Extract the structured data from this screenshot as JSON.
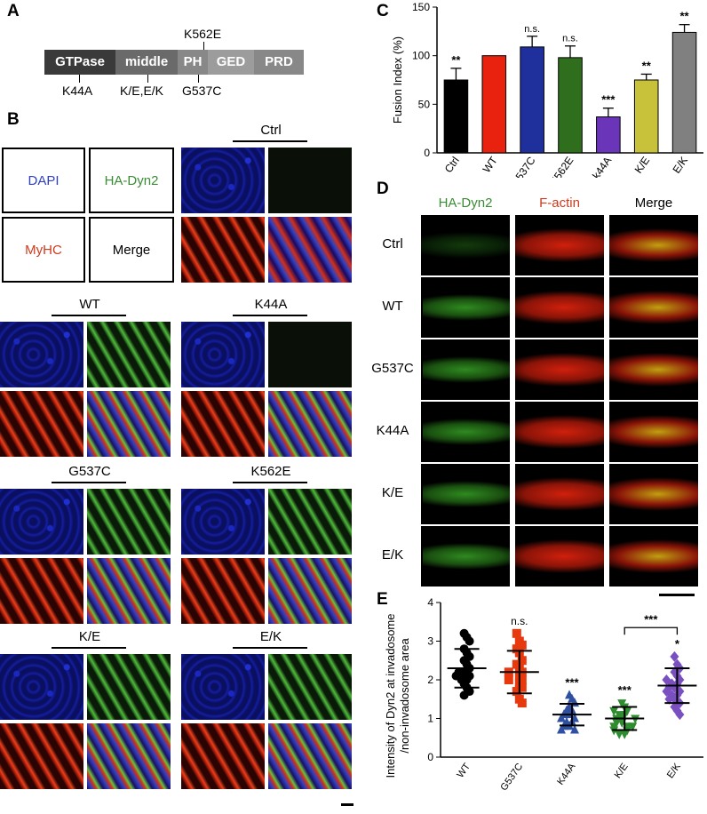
{
  "panels": {
    "a": "A",
    "b": "B",
    "c": "C",
    "d": "D",
    "e": "E"
  },
  "domains": [
    {
      "label": "GTPase",
      "color": "#3a3a3a"
    },
    {
      "label": "middle",
      "color": "#6a6a6a"
    },
    {
      "label": "PH",
      "color": "#888888"
    },
    {
      "label": "GED",
      "color": "#9c9c9c"
    },
    {
      "label": "PRD",
      "color": "#888888"
    }
  ],
  "mutations": {
    "k562e": "K562E",
    "k44a": "K44A",
    "ke_ek": "K/E,E/K",
    "g537c": "G537C"
  },
  "legend_boxes": {
    "dapi": "DAPI",
    "hadyn2": "HA-Dyn2",
    "myhc": "MyHC",
    "merge": "Merge"
  },
  "panel_b_groups": [
    "Ctrl",
    "WT",
    "K44A",
    "G537C",
    "K562E",
    "K/E",
    "E/K"
  ],
  "panel_d": {
    "columns": [
      "HA-Dyn2",
      "F-actin",
      "Merge"
    ],
    "rows": [
      "Ctrl",
      "WT",
      "G537C",
      "K44A",
      "K/E",
      "E/K"
    ]
  },
  "colors": {
    "dapi": "#1f2fd0",
    "ha": "#3aa535",
    "myhc": "#e23a1c",
    "black": "#000000"
  },
  "chart_data": [
    {
      "type": "bar",
      "ylabel": "Fusion Index (%)",
      "ylim": [
        0,
        150
      ],
      "yticks": [
        0,
        50,
        100,
        150
      ],
      "categories": [
        "Ctrl",
        "WT",
        "G537C",
        "K562E",
        "k44A",
        "K/E",
        "E/K"
      ],
      "values": [
        75,
        100,
        109,
        98,
        37,
        75,
        124
      ],
      "errors": [
        12,
        0,
        11,
        12,
        9,
        6,
        8
      ],
      "colors": [
        "#000000",
        "#e8220e",
        "#1f2f9c",
        "#2f6e1c",
        "#6a35b8",
        "#c8c23a",
        "#808080"
      ],
      "annotations": [
        "**",
        "",
        "n.s.",
        "n.s.",
        "***",
        "**",
        "**"
      ]
    },
    {
      "type": "scatter",
      "ylabel": "Intensity of Dyn2 at invadosome\n/non-invadosome  area",
      "ylim": [
        0,
        4
      ],
      "yticks": [
        0,
        1,
        2,
        3,
        4
      ],
      "categories": [
        "WT",
        "G537C",
        "K44A",
        "K/E",
        "E/K"
      ],
      "markers": [
        "circle",
        "square",
        "triangle",
        "triangle-down",
        "diamond"
      ],
      "colors": [
        "#000000",
        "#e8380e",
        "#2f4fa0",
        "#2f8c2f",
        "#7a4fc0"
      ],
      "means": [
        2.3,
        2.2,
        1.1,
        1.0,
        1.85
      ],
      "sd": [
        0.5,
        0.55,
        0.28,
        0.3,
        0.45
      ],
      "points": [
        [
          3.2,
          3.1,
          3.0,
          2.8,
          2.7,
          2.6,
          2.5,
          2.4,
          2.3,
          2.2,
          2.2,
          2.1,
          2.1,
          2.0,
          2.0,
          1.9,
          1.8,
          1.7,
          1.6
        ],
        [
          3.2,
          3.0,
          2.9,
          2.8,
          2.7,
          2.5,
          2.4,
          2.3,
          2.2,
          2.2,
          2.1,
          2.0,
          2.0,
          1.9,
          1.8,
          1.7,
          1.5,
          1.4
        ],
        [
          1.6,
          1.5,
          1.4,
          1.3,
          1.2,
          1.2,
          1.1,
          1.1,
          1.0,
          1.0,
          0.9,
          0.9,
          0.8,
          0.8,
          0.7,
          0.7
        ],
        [
          1.4,
          1.3,
          1.2,
          1.2,
          1.1,
          1.1,
          1.0,
          1.0,
          1.0,
          0.9,
          0.9,
          0.8,
          0.8,
          0.8,
          0.7,
          0.7,
          0.6,
          0.6
        ],
        [
          2.6,
          2.4,
          2.3,
          2.2,
          2.1,
          2.0,
          2.0,
          1.9,
          1.9,
          1.8,
          1.8,
          1.7,
          1.7,
          1.6,
          1.6,
          1.5,
          1.5,
          1.4,
          1.3,
          1.2,
          1.1
        ]
      ],
      "annotations": [
        "",
        "n.s.",
        "***",
        "***",
        "*"
      ],
      "bracket": {
        "from": "K/E",
        "to": "E/K",
        "label": "***"
      }
    }
  ]
}
